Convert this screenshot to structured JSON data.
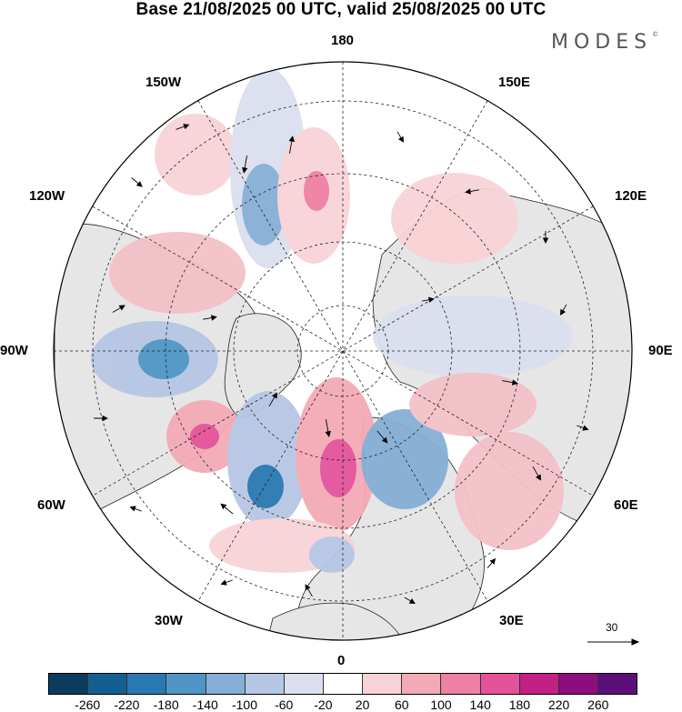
{
  "header": {
    "title": "Base 21/08/2025 00 UTC, valid 25/08/2025 00 UTC",
    "brand": "MODES",
    "brand_mark": "©"
  },
  "map": {
    "projection": "north-polar-stereographic",
    "longitude_labels": {
      "top": "180",
      "bottom": "0",
      "left": "90W",
      "right": "90E",
      "upper_left": "150W",
      "upper_right": "150E",
      "mid_left": "120W",
      "mid_right": "120E",
      "lower_left": "60W",
      "lower_right": "60E",
      "bottom_left": "30W",
      "bottom_right": "30E"
    },
    "land_color": "#e6e6e6",
    "ocean_color": "#ffffff"
  },
  "wind_reference": {
    "label": "30"
  },
  "colorbar": {
    "colors": [
      "#0b3c5f",
      "#145f91",
      "#2878b2",
      "#4f96c6",
      "#85afd6",
      "#b6c7e4",
      "#dcdfee",
      "#ffffff",
      "#f8d3d6",
      "#f3aab7",
      "#ef7fa3",
      "#e4539a",
      "#c41f85",
      "#8c0d7f",
      "#5a0f7a"
    ],
    "ticks": [
      "-260",
      "-220",
      "-180",
      "-140",
      "-100",
      "-60",
      "-20",
      "20",
      "60",
      "100",
      "140",
      "180",
      "220",
      "260"
    ]
  }
}
